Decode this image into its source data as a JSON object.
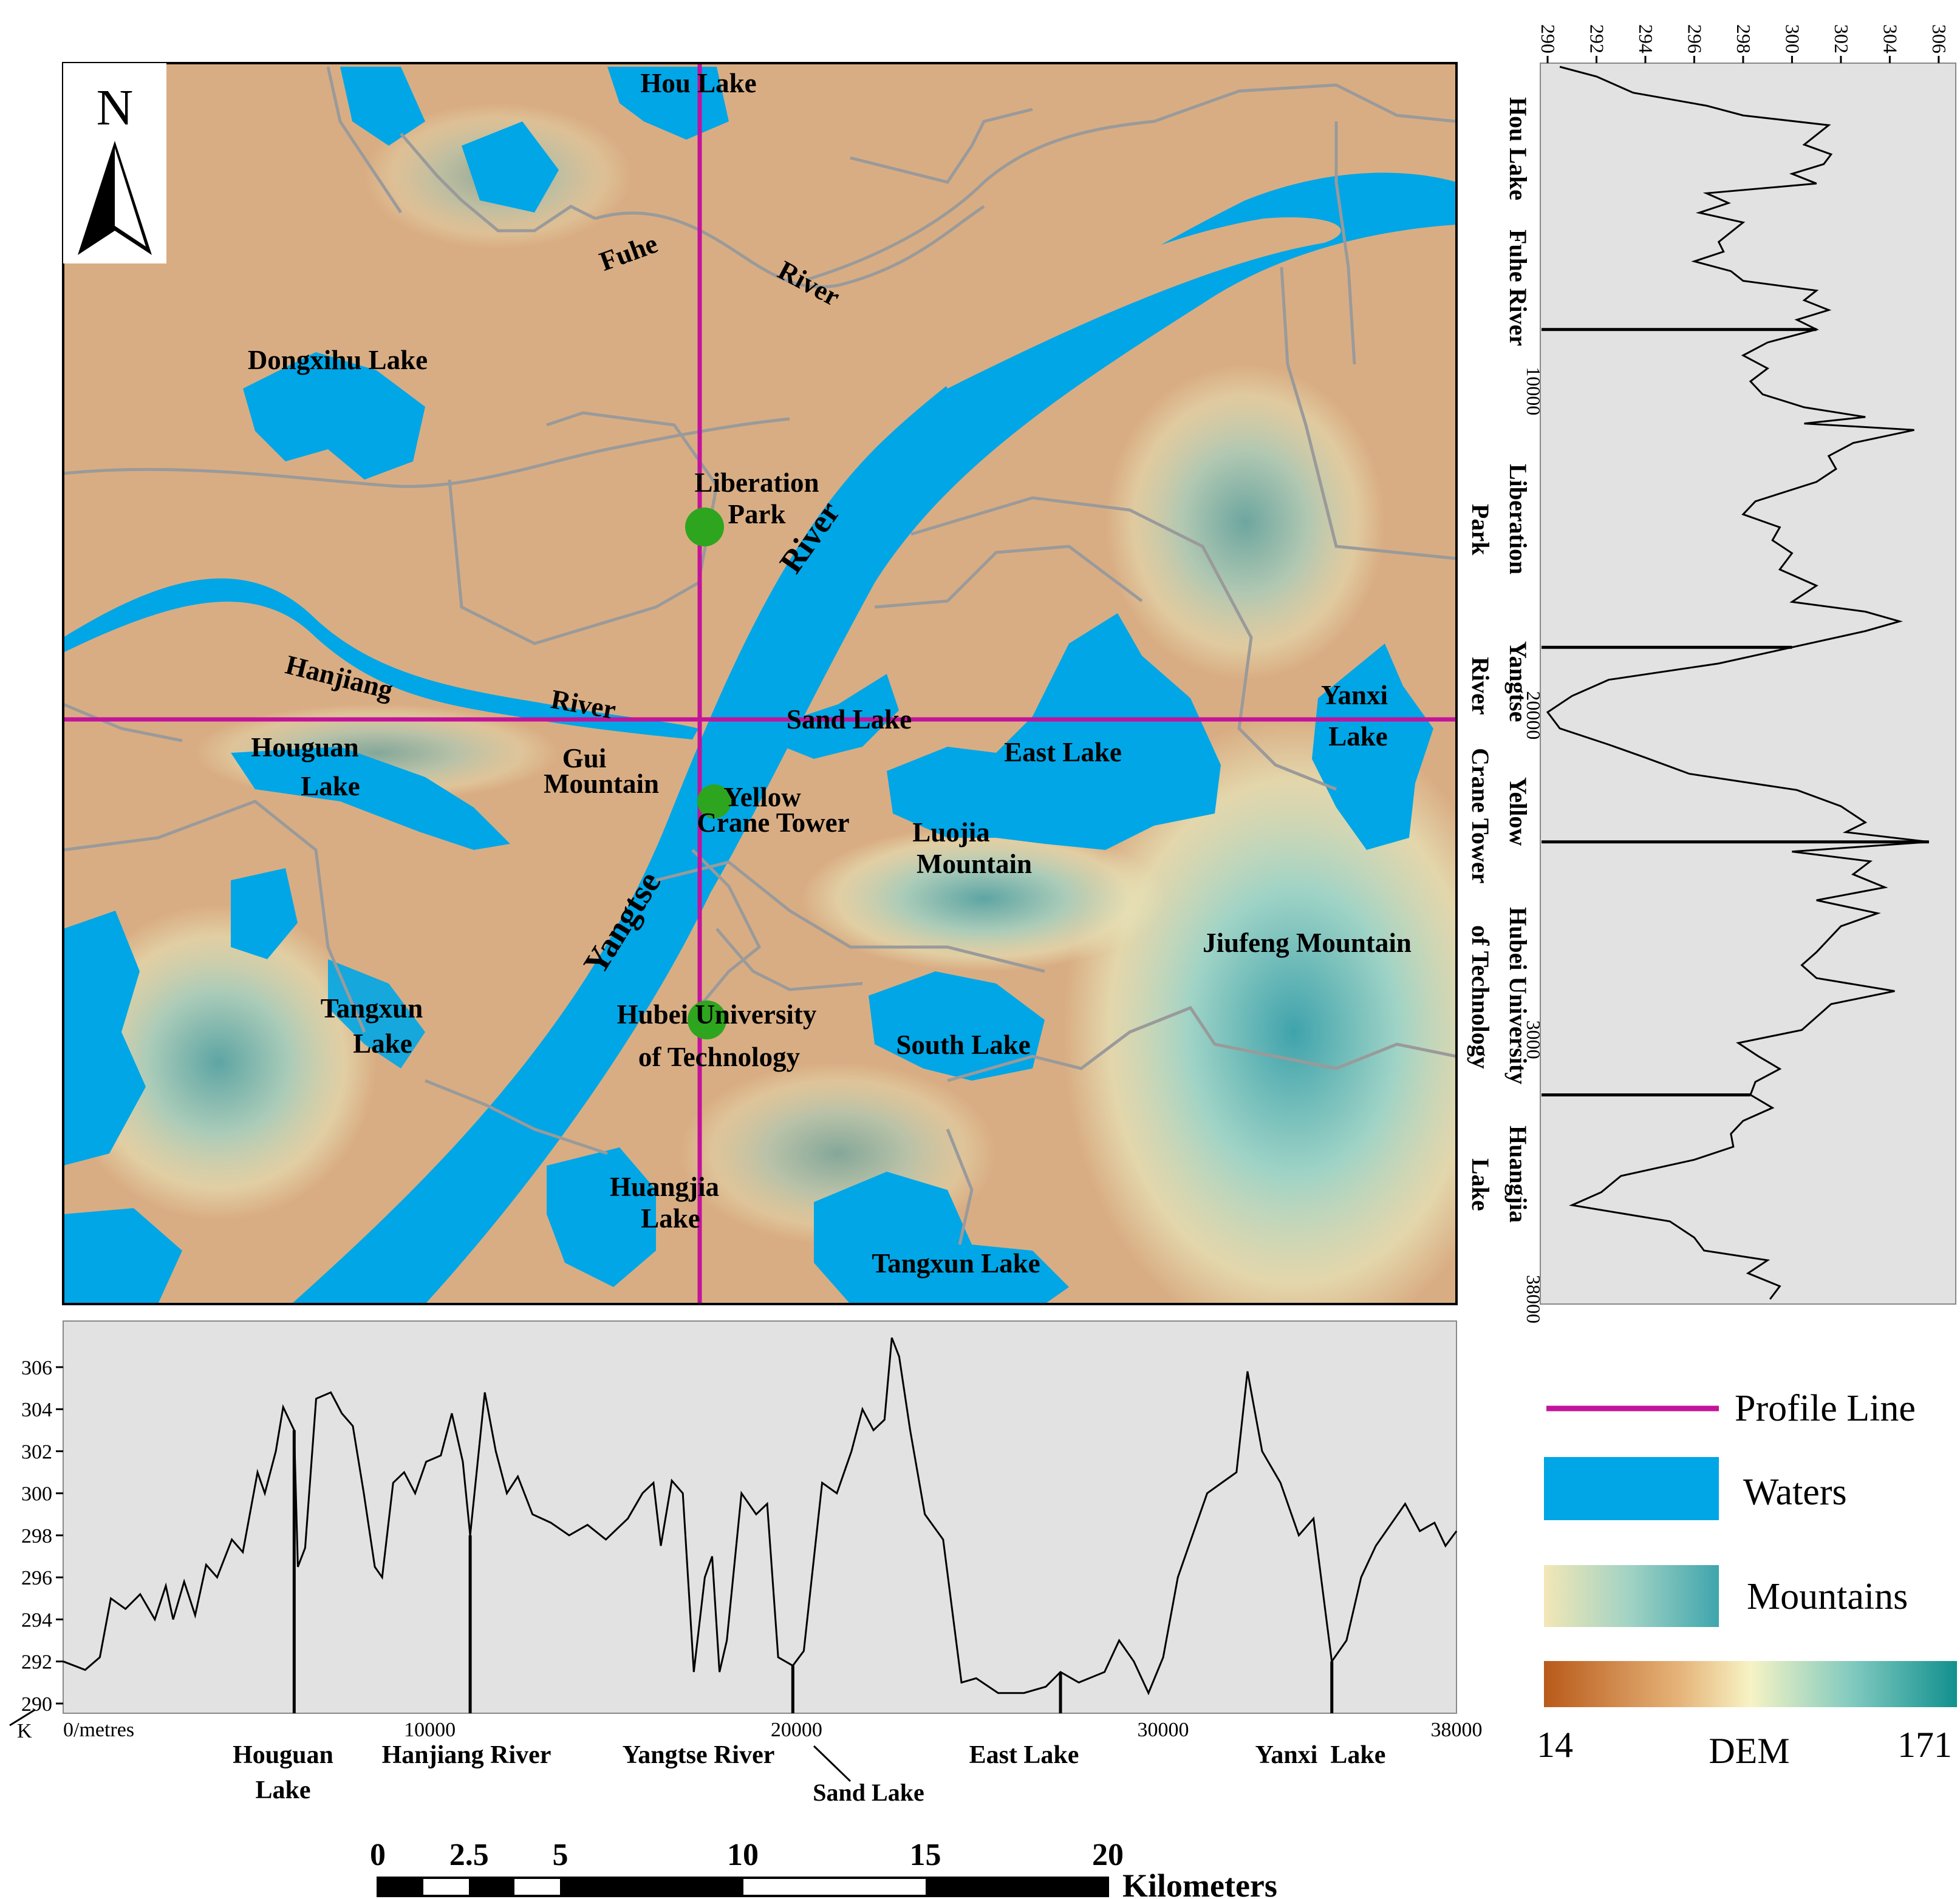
{
  "map": {
    "north_label": "N",
    "places": [
      {
        "id": "hou-lake",
        "label": "Hou Lake"
      },
      {
        "id": "fuhe",
        "label": "Fuhe"
      },
      {
        "id": "fuhe-river",
        "label": "River"
      },
      {
        "id": "dongxihu",
        "label": "Dongxihu Lake"
      },
      {
        "id": "liberation-1",
        "label": "Liberation"
      },
      {
        "id": "liberation-2",
        "label": "Park"
      },
      {
        "id": "yangtze-river",
        "label": "River"
      },
      {
        "id": "yangtze",
        "label": "Yangtse"
      },
      {
        "id": "hanjiang",
        "label": "Hanjiang"
      },
      {
        "id": "hanjiang-river",
        "label": "River"
      },
      {
        "id": "sand-lake",
        "label": "Sand Lake"
      },
      {
        "id": "yanxi-1",
        "label": "Yanxi"
      },
      {
        "id": "yanxi-2",
        "label": "Lake"
      },
      {
        "id": "houguan-1",
        "label": "Houguan"
      },
      {
        "id": "houguan-2",
        "label": "Lake"
      },
      {
        "id": "gui-1",
        "label": "Gui"
      },
      {
        "id": "gui-2",
        "label": "Mountain"
      },
      {
        "id": "east-lake",
        "label": "East Lake"
      },
      {
        "id": "yellow-1",
        "label": "Yellow"
      },
      {
        "id": "yellow-2",
        "label": "Crane Tower"
      },
      {
        "id": "luojia-1",
        "label": "Luojia"
      },
      {
        "id": "luojia-2",
        "label": "Mountain"
      },
      {
        "id": "jiufeng",
        "label": "Jiufeng Mountain"
      },
      {
        "id": "tangxun-w-1",
        "label": "Tangxun"
      },
      {
        "id": "tangxun-w-2",
        "label": "Lake"
      },
      {
        "id": "hubei-1",
        "label": "Hubei University"
      },
      {
        "id": "hubei-2",
        "label": "of Technology"
      },
      {
        "id": "south-lake",
        "label": "South Lake"
      },
      {
        "id": "huangjia-1",
        "label": "Huangjia"
      },
      {
        "id": "huangjia-2",
        "label": "Lake"
      },
      {
        "id": "tangxun-s",
        "label": "Tangxun Lake"
      }
    ]
  },
  "profile_bottom": {
    "y_ticks": [
      "290",
      "292",
      "294",
      "296",
      "298",
      "300",
      "302",
      "304",
      "306"
    ],
    "x_ticks": [
      "0/metres",
      "10000",
      "20000",
      "30000",
      "38000"
    ],
    "corner_label": "K",
    "features": [
      "Houguan",
      "Lake",
      "Hanjiang River",
      "Yangtse River",
      "Sand Lake",
      "East Lake",
      "Yanxi  Lake"
    ],
    "profile": [
      [
        0,
        292
      ],
      [
        600,
        291.6
      ],
      [
        1000,
        292.2
      ],
      [
        1300,
        295
      ],
      [
        1700,
        294.5
      ],
      [
        2100,
        295.2
      ],
      [
        2500,
        294
      ],
      [
        2800,
        295.6
      ],
      [
        3000,
        294
      ],
      [
        3300,
        295.8
      ],
      [
        3600,
        294.2
      ],
      [
        3900,
        296.6
      ],
      [
        4200,
        296
      ],
      [
        4600,
        297.8
      ],
      [
        4900,
        297.2
      ],
      [
        5300,
        301
      ],
      [
        5500,
        300
      ],
      [
        5800,
        302
      ],
      [
        6000,
        304.1
      ],
      [
        6300,
        303
      ],
      [
        6400,
        296.5
      ],
      [
        6600,
        297.4
      ],
      [
        6900,
        304.5
      ],
      [
        7300,
        304.8
      ],
      [
        7600,
        303.8
      ],
      [
        7900,
        303.2
      ],
      [
        8200,
        300
      ],
      [
        8500,
        296.5
      ],
      [
        8700,
        296
      ],
      [
        9000,
        300.5
      ],
      [
        9300,
        301
      ],
      [
        9600,
        300
      ],
      [
        9900,
        301.5
      ],
      [
        10300,
        301.8
      ],
      [
        10600,
        303.8
      ],
      [
        10900,
        301.5
      ],
      [
        11100,
        298
      ],
      [
        11500,
        304.8
      ],
      [
        11800,
        302
      ],
      [
        12100,
        300
      ],
      [
        12400,
        300.8
      ],
      [
        12800,
        299
      ],
      [
        13300,
        298.6
      ],
      [
        13800,
        298
      ],
      [
        14300,
        298.5
      ],
      [
        14800,
        297.8
      ],
      [
        15400,
        298.8
      ],
      [
        15800,
        300
      ],
      [
        16100,
        300.5
      ],
      [
        16300,
        297.5
      ],
      [
        16600,
        300.6
      ],
      [
        16900,
        300
      ],
      [
        17200,
        291.5
      ],
      [
        17500,
        296
      ],
      [
        17700,
        297
      ],
      [
        17900,
        291.5
      ],
      [
        18100,
        293
      ],
      [
        18500,
        300
      ],
      [
        18900,
        299
      ],
      [
        19200,
        299.5
      ],
      [
        19500,
        292.2
      ],
      [
        19900,
        291.8
      ],
      [
        20200,
        292.5
      ],
      [
        20700,
        300.5
      ],
      [
        21100,
        300
      ],
      [
        21500,
        302
      ],
      [
        21800,
        304
      ],
      [
        22100,
        303
      ],
      [
        22400,
        303.5
      ],
      [
        22600,
        307.4
      ],
      [
        22800,
        306.5
      ],
      [
        23100,
        303
      ],
      [
        23500,
        299
      ],
      [
        24000,
        297.8
      ],
      [
        24500,
        291
      ],
      [
        24900,
        291.2
      ],
      [
        25500,
        290.5
      ],
      [
        26200,
        290.5
      ],
      [
        26800,
        290.8
      ],
      [
        27200,
        291.5
      ],
      [
        27700,
        291
      ],
      [
        28400,
        291.5
      ],
      [
        28800,
        293
      ],
      [
        29200,
        292
      ],
      [
        29600,
        290.5
      ],
      [
        30000,
        292.2
      ],
      [
        30400,
        296
      ],
      [
        30800,
        298
      ],
      [
        31200,
        300
      ],
      [
        31600,
        300.5
      ],
      [
        32000,
        301
      ],
      [
        32300,
        305.8
      ],
      [
        32700,
        302
      ],
      [
        33200,
        300.5
      ],
      [
        33700,
        298
      ],
      [
        34100,
        298.8
      ],
      [
        34600,
        292
      ],
      [
        35000,
        293
      ],
      [
        35400,
        296
      ],
      [
        35800,
        297.5
      ],
      [
        36200,
        298.5
      ],
      [
        36600,
        299.5
      ],
      [
        37000,
        298.2
      ],
      [
        37400,
        298.6
      ],
      [
        37700,
        297.5
      ],
      [
        38000,
        298.2
      ]
    ]
  },
  "profile_right": {
    "y_ticks": [
      "290",
      "292",
      "294",
      "296",
      "298",
      "300",
      "302",
      "304",
      "306"
    ],
    "x_ticks": [
      "10000",
      "20000",
      "3000",
      "38000"
    ],
    "features": [
      "Hou Lake",
      "Fuhe River",
      "Liberation",
      "Park",
      "Yangtse",
      "River",
      "Yellow",
      "Crane Tower",
      "Hubei University",
      "of Technology",
      "Huangjia",
      "Lake"
    ],
    "profile": [
      [
        0,
        290.5
      ],
      [
        300,
        292
      ],
      [
        800,
        293.5
      ],
      [
        1200,
        296.5
      ],
      [
        1500,
        298
      ],
      [
        1800,
        301.5
      ],
      [
        2100,
        301
      ],
      [
        2400,
        300.5
      ],
      [
        2700,
        301.6
      ],
      [
        3000,
        301.3
      ],
      [
        3300,
        300
      ],
      [
        3600,
        301
      ],
      [
        3900,
        296.5
      ],
      [
        4200,
        297.4
      ],
      [
        4500,
        296.2
      ],
      [
        4800,
        298
      ],
      [
        5100,
        297.5
      ],
      [
        5400,
        297
      ],
      [
        5700,
        297.2
      ],
      [
        6000,
        296
      ],
      [
        6300,
        297.5
      ],
      [
        6600,
        298
      ],
      [
        6900,
        301
      ],
      [
        7200,
        300.5
      ],
      [
        7500,
        301.5
      ],
      [
        7800,
        300.2
      ],
      [
        8100,
        301
      ],
      [
        8500,
        299
      ],
      [
        8900,
        298
      ],
      [
        9300,
        299
      ],
      [
        9700,
        298.3
      ],
      [
        10100,
        298.8
      ],
      [
        10500,
        300.5
      ],
      [
        10800,
        303
      ],
      [
        11000,
        300.5
      ],
      [
        11200,
        305
      ],
      [
        11600,
        302.5
      ],
      [
        12000,
        301.5
      ],
      [
        12400,
        301.8
      ],
      [
        12800,
        301
      ],
      [
        13400,
        298.5
      ],
      [
        13800,
        298
      ],
      [
        14200,
        299.5
      ],
      [
        14600,
        299.2
      ],
      [
        15000,
        300
      ],
      [
        15500,
        299.5
      ],
      [
        16000,
        301
      ],
      [
        16500,
        300
      ],
      [
        16800,
        303
      ],
      [
        17100,
        304.4
      ],
      [
        17400,
        303
      ],
      [
        17900,
        300
      ],
      [
        18400,
        297
      ],
      [
        18900,
        292.5
      ],
      [
        19400,
        291
      ],
      [
        19900,
        290
      ],
      [
        20400,
        290.5
      ],
      [
        20900,
        292.5
      ],
      [
        21300,
        294
      ],
      [
        21800,
        295.8
      ],
      [
        22300,
        300.2
      ],
      [
        22800,
        302
      ],
      [
        23300,
        303
      ],
      [
        23600,
        302.2
      ],
      [
        23900,
        305.6
      ],
      [
        24200,
        300
      ],
      [
        24500,
        303.2
      ],
      [
        24900,
        302.5
      ],
      [
        25300,
        303.8
      ],
      [
        25700,
        301
      ],
      [
        26100,
        303.5
      ],
      [
        26500,
        302
      ],
      [
        26900,
        301.5
      ],
      [
        27300,
        301
      ],
      [
        27700,
        300.4
      ],
      [
        28100,
        301
      ],
      [
        28500,
        304.2
      ],
      [
        28900,
        301.6
      ],
      [
        29300,
        301
      ],
      [
        29700,
        300.4
      ],
      [
        30100,
        297.8
      ],
      [
        30500,
        298.6
      ],
      [
        30900,
        299.5
      ],
      [
        31300,
        298.5
      ],
      [
        31700,
        298.3
      ],
      [
        32100,
        299.2
      ],
      [
        32500,
        298
      ],
      [
        32900,
        297.5
      ],
      [
        33300,
        297.6
      ],
      [
        33700,
        296
      ],
      [
        34200,
        293
      ],
      [
        34700,
        292.2
      ],
      [
        35100,
        291
      ],
      [
        35600,
        295
      ],
      [
        36100,
        296
      ],
      [
        36500,
        296.4
      ],
      [
        36800,
        299
      ],
      [
        37200,
        298.2
      ],
      [
        37600,
        299.5
      ],
      [
        38000,
        299.1
      ]
    ]
  },
  "legend": {
    "items": [
      "Profile Line",
      "Waters",
      "Mountains"
    ],
    "dem_min": "14",
    "dem_label": "DEM",
    "dem_max": "171",
    "colors": {
      "profile_line": "#c3139b",
      "waters": "#00a6e6",
      "terrain": "#d9ad83",
      "plot_bg": "#e2e2e2"
    }
  },
  "scalebar": {
    "ticks": [
      "0",
      "2.5",
      "5",
      "10",
      "15",
      "20"
    ],
    "unit": "Kilometers"
  }
}
